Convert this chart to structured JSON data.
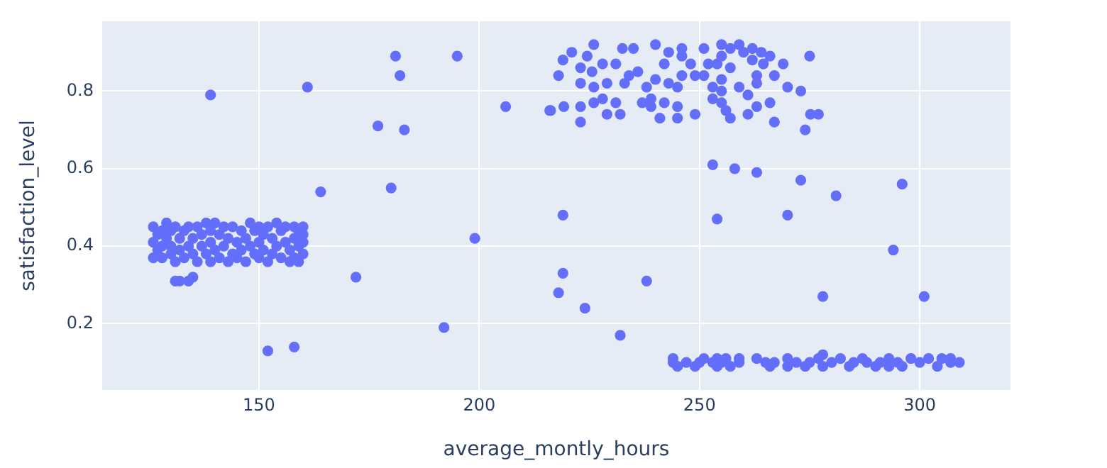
{
  "chart_data": {
    "type": "scatter",
    "xlabel": "average_montly_hours",
    "ylabel": "satisfaction_level",
    "xlim": [
      114.4,
      320.6
    ],
    "ylim": [
      0.029,
      0.98
    ],
    "xticks": [
      150,
      200,
      250,
      300
    ],
    "yticks": [
      0.2,
      0.4,
      0.6,
      0.8
    ],
    "grid": true,
    "marker": "circle",
    "legend": false,
    "series": [
      {
        "color": "#636efa",
        "x": [
          126,
          126,
          126,
          127,
          127,
          128,
          128,
          128,
          129,
          129,
          130,
          130,
          130,
          131,
          131,
          131,
          132,
          132,
          132,
          133,
          133,
          134,
          134,
          134,
          135,
          135,
          135,
          136,
          136,
          137,
          137,
          138,
          138,
          139,
          139,
          139,
          140,
          140,
          141,
          141,
          142,
          142,
          143,
          143,
          144,
          144,
          145,
          145,
          146,
          146,
          147,
          147,
          148,
          148,
          149,
          149,
          150,
          150,
          150,
          151,
          151,
          152,
          152,
          153,
          153,
          154,
          154,
          155,
          155,
          156,
          156,
          157,
          157,
          158,
          158,
          158,
          159,
          159,
          159,
          160,
          160,
          160,
          160,
          139,
          161,
          181,
          195,
          182,
          177,
          183,
          164,
          180,
          199,
          172,
          192,
          152,
          158,
          206,
          216,
          219,
          219,
          218,
          224,
          232,
          238,
          253,
          258,
          263,
          254,
          270,
          273,
          281,
          296,
          294,
          278,
          301,
          274,
          275.2,
          277,
          275,
          216.2,
          219.2,
          223,
          223,
          218,
          219,
          221,
          224.5,
          226,
          223,
          225.6,
          223,
          226,
          226,
          228,
          228,
          229,
          229,
          231,
          231,
          232,
          232.5,
          235,
          233,
          234,
          236,
          237,
          238,
          239,
          239,
          240,
          240,
          241,
          242,
          242,
          243,
          243,
          245,
          245,
          245,
          246,
          246,
          246,
          248,
          249,
          249,
          251,
          251,
          252,
          253,
          253,
          254,
          255,
          255,
          255,
          255,
          255,
          256,
          257,
          257,
          257,
          259,
          260,
          259,
          261,
          261,
          262,
          262,
          263,
          263,
          263,
          264,
          264.5,
          266,
          266,
          267,
          267,
          269,
          270,
          273,
          244,
          244,
          245,
          247,
          249,
          250,
          251,
          253,
          254,
          254,
          255,
          256,
          257,
          259,
          259,
          263,
          265,
          266,
          267,
          270,
          270,
          272,
          274,
          275,
          277,
          278,
          278,
          280,
          282,
          284,
          285,
          287,
          288,
          290,
          291,
          293,
          293,
          295,
          296,
          298,
          300,
          302,
          304,
          305,
          307,
          307,
          309
        ],
        "values": [
          0.45,
          0.41,
          0.37,
          0.43,
          0.39,
          0.37,
          0.44,
          0.4,
          0.46,
          0.42,
          0.38,
          0.44,
          0.4,
          0.31,
          0.45,
          0.36,
          0.31,
          0.42,
          0.39,
          0.44,
          0.37,
          0.45,
          0.4,
          0.31,
          0.32,
          0.42,
          0.38,
          0.45,
          0.36,
          0.43,
          0.4,
          0.46,
          0.38,
          0.44,
          0.41,
          0.36,
          0.46,
          0.39,
          0.37,
          0.43,
          0.45,
          0.4,
          0.36,
          0.42,
          0.45,
          0.38,
          0.41,
          0.37,
          0.44,
          0.39,
          0.36,
          0.42,
          0.46,
          0.4,
          0.38,
          0.44,
          0.45,
          0.37,
          0.41,
          0.43,
          0.39,
          0.36,
          0.45,
          0.42,
          0.38,
          0.46,
          0.4,
          0.37,
          0.44,
          0.45,
          0.41,
          0.36,
          0.39,
          0.45,
          0.42,
          0.37,
          0.44,
          0.4,
          0.36,
          0.45,
          0.43,
          0.41,
          0.38,
          0.79,
          0.81,
          0.89,
          0.89,
          0.84,
          0.71,
          0.7,
          0.54,
          0.55,
          0.42,
          0.32,
          0.19,
          0.13,
          0.14,
          0.76,
          0.75,
          0.48,
          0.33,
          0.28,
          0.24,
          0.17,
          0.31,
          0.61,
          0.6,
          0.59,
          0.47,
          0.48,
          0.57,
          0.53,
          0.56,
          0.39,
          0.27,
          0.27,
          0.7,
          0.74,
          0.74,
          0.89,
          0.75,
          0.76,
          0.76,
          0.72,
          0.84,
          0.88,
          0.9,
          0.89,
          0.92,
          0.86,
          0.85,
          0.82,
          0.81,
          0.77,
          0.78,
          0.87,
          0.74,
          0.82,
          0.77,
          0.87,
          0.74,
          0.91,
          0.91,
          0.82,
          0.84,
          0.85,
          0.77,
          0.81,
          0.78,
          0.76,
          0.92,
          0.83,
          0.73,
          0.77,
          0.87,
          0.9,
          0.82,
          0.81,
          0.76,
          0.73,
          0.91,
          0.89,
          0.84,
          0.87,
          0.84,
          0.74,
          0.91,
          0.84,
          0.87,
          0.81,
          0.78,
          0.87,
          0.92,
          0.89,
          0.83,
          0.8,
          0.77,
          0.75,
          0.73,
          0.86,
          0.91,
          0.92,
          0.9,
          0.81,
          0.74,
          0.79,
          0.91,
          0.88,
          0.84,
          0.82,
          0.76,
          0.9,
          0.87,
          0.89,
          0.77,
          0.84,
          0.72,
          0.87,
          0.81,
          0.8,
          0.1,
          0.11,
          0.09,
          0.1,
          0.09,
          0.1,
          0.11,
          0.1,
          0.09,
          0.11,
          0.1,
          0.11,
          0.09,
          0.1,
          0.11,
          0.11,
          0.1,
          0.09,
          0.1,
          0.09,
          0.11,
          0.1,
          0.09,
          0.1,
          0.11,
          0.12,
          0.09,
          0.1,
          0.11,
          0.09,
          0.1,
          0.11,
          0.1,
          0.09,
          0.1,
          0.11,
          0.09,
          0.1,
          0.09,
          0.11,
          0.1,
          0.11,
          0.09,
          0.11,
          0.1,
          0.11,
          0.1
        ]
      }
    ]
  }
}
